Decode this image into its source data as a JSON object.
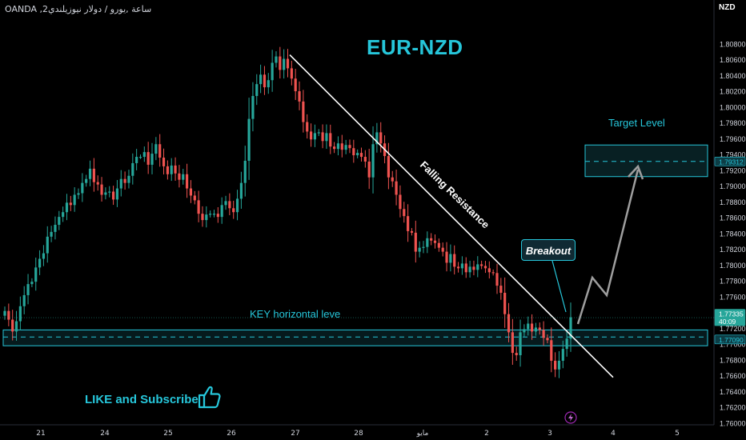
{
  "header": {
    "symbol_line": "OANDA ,2ساعة ,يورو / دولار نيوزيلندي",
    "currency": "NZD"
  },
  "annotations": {
    "title": "EUR-NZD",
    "falling_resistance": "Falling Resistance",
    "target_level": "Target Level",
    "key_level": "KEY horizontal leve",
    "breakout": "Breakout",
    "like": "LIKE and Subscribe"
  },
  "icons": {
    "thumbs_up": "thumbs-up-icon",
    "lightning": "lightning-icon"
  },
  "colors": {
    "up": "#26a69a",
    "down": "#ef5350",
    "accent": "#26c6da",
    "zone_fill": "#0e3a40",
    "line": "#ffffff",
    "projection": "#9e9e9e"
  },
  "chart_data": {
    "type": "candlestick",
    "y_axis": {
      "min": 1.76,
      "max": 1.81,
      "ticks": [
        "1.80800",
        "1.80600",
        "1.80400",
        "1.80200",
        "1.80000",
        "1.79800",
        "1.79600",
        "1.79400",
        "1.79200",
        "1.79000",
        "1.78800",
        "1.78600",
        "1.78400",
        "1.78200",
        "1.78000",
        "1.77800",
        "1.77600",
        "1.77400",
        "1.77200",
        "1.77000",
        "1.76800",
        "1.76600",
        "1.76400",
        "1.76200",
        "1.76000"
      ]
    },
    "x_axis": {
      "ticks": [
        "21",
        "24",
        "25",
        "26",
        "27",
        "28",
        "مايو",
        "2",
        "3",
        "4",
        "5"
      ]
    },
    "price_labels": [
      {
        "value": 1.79312,
        "text": "1.79312"
      },
      {
        "value": 1.77335,
        "text": "1.77335"
      },
      {
        "value": 1.77335,
        "text": "40:09"
      },
      {
        "value": 1.7709,
        "text": "1.77090"
      }
    ],
    "key_zone": {
      "low": 1.7698,
      "high": 1.7718,
      "mid": 1.7709
    },
    "target_zone": {
      "low": 1.7912,
      "high": 1.7952,
      "mid": 1.79312
    },
    "falling_resistance": {
      "start": {
        "date": "27",
        "value": 1.8066
      },
      "end": {
        "date": "4",
        "value": 1.7658
      }
    },
    "closes": [
      1.7742,
      1.7731,
      1.7716,
      1.7729,
      1.7748,
      1.7762,
      1.7776,
      1.7779,
      1.7797,
      1.7808,
      1.7815,
      1.7836,
      1.7842,
      1.7851,
      1.7861,
      1.7867,
      1.7879,
      1.7876,
      1.7889,
      1.7891,
      1.7904,
      1.7909,
      1.7922,
      1.7905,
      1.7902,
      1.7889,
      1.7892,
      1.7893,
      1.7883,
      1.7897,
      1.7909,
      1.7904,
      1.7913,
      1.7929,
      1.7937,
      1.7937,
      1.7943,
      1.7927,
      1.7941,
      1.7953,
      1.7936,
      1.7925,
      1.7915,
      1.7926,
      1.7916,
      1.7908,
      1.7915,
      1.7897,
      1.7888,
      1.7882,
      1.7865,
      1.7857,
      1.7864,
      1.7865,
      1.7865,
      1.7861,
      1.7876,
      1.7881,
      1.7872,
      1.7867,
      1.7884,
      1.7904,
      1.7932,
      1.7985,
      1.8014,
      1.8029,
      1.8041,
      1.8025,
      1.8034,
      1.8056,
      1.8064,
      1.8047,
      1.8061,
      1.8049,
      1.8036,
      1.802,
      1.8007,
      1.7981,
      1.7969,
      1.7959,
      1.7967,
      1.7968,
      1.7957,
      1.7967,
      1.795,
      1.7947,
      1.7954,
      1.7946,
      1.7952,
      1.7948,
      1.7939,
      1.7942,
      1.7937,
      1.7931,
      1.7911,
      1.7953,
      1.7968,
      1.7954,
      1.7938,
      1.7911,
      1.7906,
      1.7889,
      1.7871,
      1.7862,
      1.7843,
      1.7841,
      1.7817,
      1.7822,
      1.7823,
      1.7834,
      1.7831,
      1.7828,
      1.7822,
      1.7817,
      1.7803,
      1.7814,
      1.7798,
      1.7796,
      1.7802,
      1.7791,
      1.7798,
      1.7794,
      1.7801,
      1.7799,
      1.7796,
      1.7791,
      1.779,
      1.7774,
      1.7765,
      1.7738,
      1.7715,
      1.7689,
      1.7686,
      1.7715,
      1.7719,
      1.7726,
      1.7716,
      1.7721,
      1.7718,
      1.7708,
      1.7705,
      1.7679,
      1.7668,
      1.7679,
      1.7694,
      1.7707,
      1.7734
    ]
  }
}
